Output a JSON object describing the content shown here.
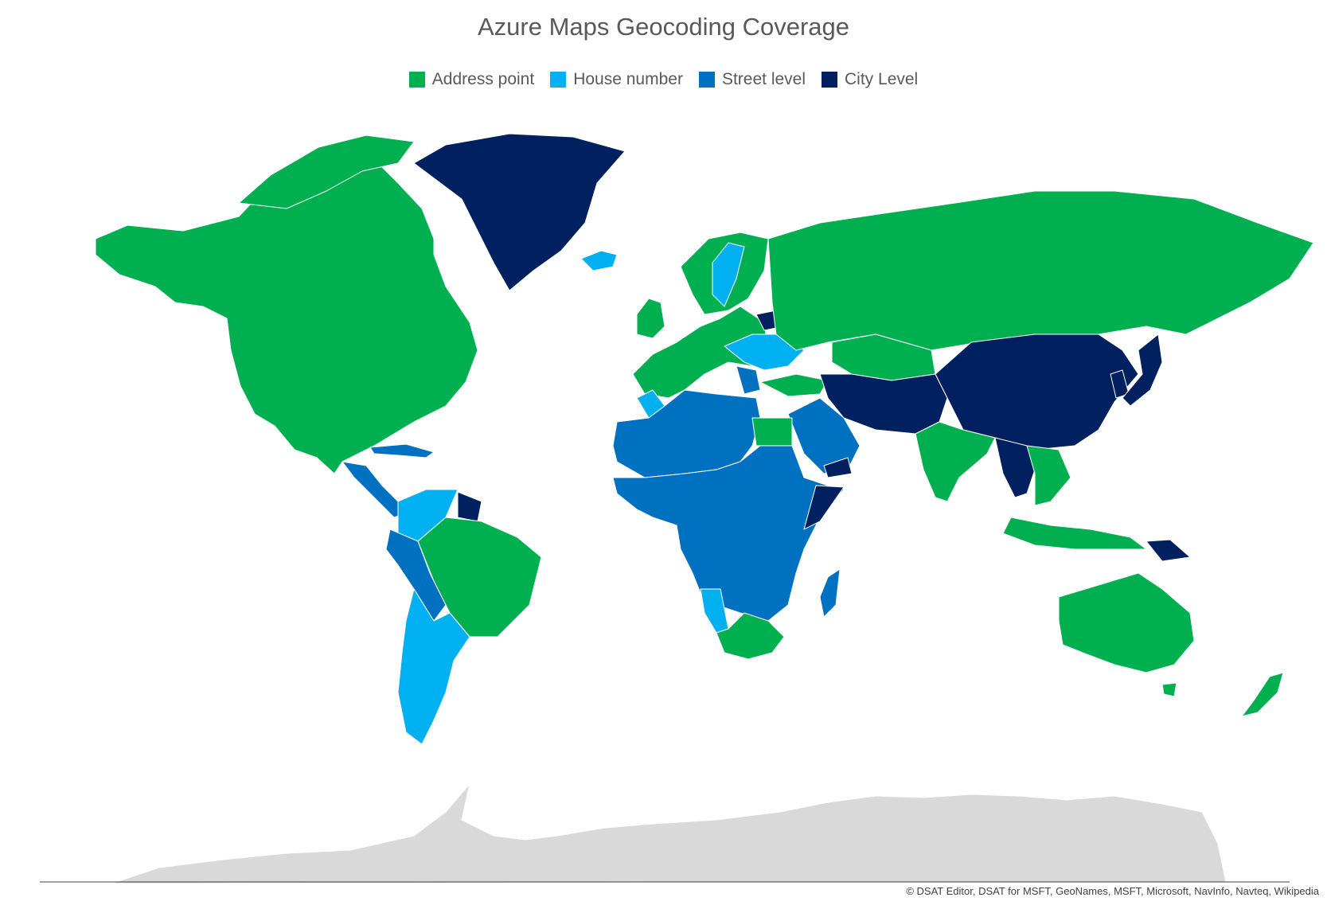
{
  "title": "Azure Maps Geocoding Coverage",
  "legend": [
    {
      "label": "Address point",
      "color": "#00b050"
    },
    {
      "label": "House number",
      "color": "#00b0f0"
    },
    {
      "label": "Street level",
      "color": "#0070c0"
    },
    {
      "label": "City Level",
      "color": "#002060"
    }
  ],
  "no_data_color": "#d9d9d9",
  "credit": "© DSAT Editor, DSAT for MSFT, GeoNames, MSFT, Microsoft, NavInfo, Navteq, Wikipedia"
}
